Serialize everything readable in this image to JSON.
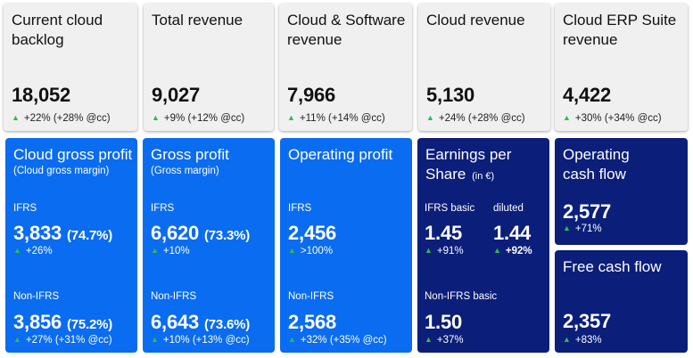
{
  "kpis": [
    {
      "title": "Current cloud backlog",
      "value": "18,052",
      "change": "+22% (+28% @cc)"
    },
    {
      "title": "Total revenue",
      "value": "9,027",
      "change": "+9% (+12% @cc)"
    },
    {
      "title": "Cloud & Software revenue",
      "value": "7,966",
      "change": "+11% (+14% @cc)"
    },
    {
      "title": "Cloud revenue",
      "value": "5,130",
      "change": "+24% (+28% @cc)"
    },
    {
      "title": "Cloud ERP Suite revenue",
      "value": "4,422",
      "change": "+30% (+34% @cc)"
    }
  ],
  "cloud_gross_profit": {
    "title": "Cloud gross profit",
    "subtitle": "(Cloud gross margin)",
    "ifrs_label": "IFRS",
    "ifrs_value": "3,833",
    "ifrs_pct": "(74.7%)",
    "ifrs_change": "+26%",
    "nonifrs_label": "Non-IFRS",
    "nonifrs_value": "3,856",
    "nonifrs_pct": "(75.2%)",
    "nonifrs_change": "+27% (+31% @cc)"
  },
  "gross_profit": {
    "title": "Gross profit",
    "subtitle": "(Gross margin)",
    "ifrs_label": "IFRS",
    "ifrs_value": "6,620",
    "ifrs_pct": "(73.3%)",
    "ifrs_change": "+10%",
    "nonifrs_label": "Non-IFRS",
    "nonifrs_value": "6,643",
    "nonifrs_pct": "(73.6%)",
    "nonifrs_change": "+10% (+13% @cc)"
  },
  "operating_profit": {
    "title": "Operating profit",
    "ifrs_label": "IFRS",
    "ifrs_value": "2,456",
    "ifrs_change": ">100%",
    "nonifrs_label": "Non-IFRS",
    "nonifrs_value": "2,568",
    "nonifrs_change": "+32% (+35% @cc)"
  },
  "eps": {
    "title": "Earnings per",
    "title2": "Share",
    "unit": "(in €)",
    "basic_label": "IFRS basic",
    "basic_value": "1.45",
    "basic_change": "+91%",
    "diluted_label": "diluted",
    "diluted_value": "1.44",
    "diluted_change": "+92%",
    "nonifrs_label": "Non-IFRS basic",
    "nonifrs_value": "1.50",
    "nonifrs_change": "+37%"
  },
  "operating_cash_flow": {
    "title": "Operating cash flow",
    "value": "2,577",
    "change": "+71%"
  },
  "free_cash_flow": {
    "title": "Free cash flow",
    "value": "2,357",
    "change": "+83%"
  },
  "icons": {
    "up": "up-triangle-icon"
  },
  "colors": {
    "blue": "#0a6cf0",
    "navy": "#0a1e7a",
    "grey": "#f0f0f0",
    "up_arrow": "#2ebd4a"
  }
}
